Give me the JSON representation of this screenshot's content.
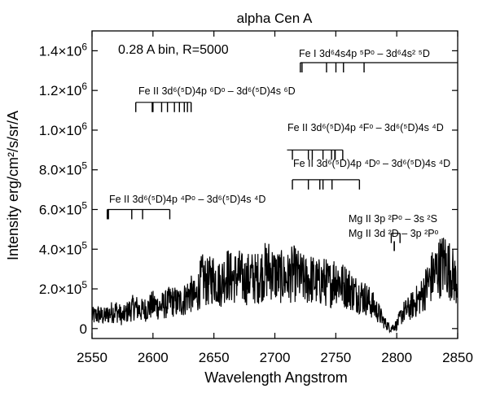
{
  "chart_data": {
    "type": "line",
    "title": "alpha Cen A",
    "xlabel": "Wavelength Angstrom",
    "ylabel": "Intensity erg/cm²/s/sr/A",
    "annotation": "0.28 A bin, R=5000",
    "xlim": [
      2550,
      2850
    ],
    "ylim": [
      -50000,
      1500000
    ],
    "x_ticks": [
      2550,
      2600,
      2650,
      2700,
      2750,
      2800,
      2850
    ],
    "x_ticklabels": [
      "2550",
      "2600",
      "2650",
      "2700",
      "2750",
      "2800",
      "2850"
    ],
    "y_ticks": [
      0,
      200000,
      400000,
      600000,
      800000,
      1000000,
      1200000,
      1400000
    ],
    "y_ticklabels": [
      {
        "text": "0",
        "mant": "",
        "exp": ""
      },
      {
        "text": "",
        "mant": "2.0×10",
        "exp": "5"
      },
      {
        "text": "",
        "mant": "4.0×10",
        "exp": "5"
      },
      {
        "text": "",
        "mant": "6.0×10",
        "exp": "5"
      },
      {
        "text": "",
        "mant": "8.0×10",
        "exp": "5"
      },
      {
        "text": "",
        "mant": "1.0×10",
        "exp": "6"
      },
      {
        "text": "",
        "mant": "1.2×10",
        "exp": "6"
      },
      {
        "text": "",
        "mant": "1.4×10",
        "exp": "6"
      }
    ],
    "grid": false,
    "color": "#000000",
    "series": [
      {
        "x": [
          2550,
          2555,
          2560,
          2565,
          2570,
          2575,
          2580,
          2585,
          2590,
          2595,
          2600,
          2605,
          2610,
          2615,
          2620,
          2625,
          2630,
          2635,
          2640,
          2645,
          2650,
          2655,
          2660,
          2665,
          2670,
          2675,
          2680,
          2685,
          2690,
          2695,
          2700,
          2705,
          2710,
          2715,
          2720,
          2725,
          2730,
          2735,
          2740,
          2745,
          2750,
          2755,
          2760,
          2765,
          2770,
          2775,
          2780,
          2785,
          2790,
          2795,
          2800,
          2805,
          2810,
          2815,
          2820,
          2825,
          2830,
          2835,
          2840,
          2845,
          2850
        ],
        "y": [
          60000,
          70000,
          60000,
          80000,
          90000,
          60000,
          90000,
          110000,
          90000,
          100000,
          120000,
          110000,
          120000,
          140000,
          130000,
          140000,
          180000,
          150000,
          250000,
          230000,
          260000,
          220000,
          280000,
          250000,
          270000,
          240000,
          260000,
          250000,
          280000,
          300000,
          270000,
          260000,
          250000,
          280000,
          260000,
          240000,
          250000,
          230000,
          240000,
          220000,
          260000,
          220000,
          210000,
          180000,
          170000,
          150000,
          120000,
          80000,
          30000,
          0,
          20000,
          80000,
          100000,
          130000,
          160000,
          220000,
          270000,
          310000,
          330000,
          280000,
          220000
        ]
      }
    ],
    "line_groups": [
      {
        "label": "Fe I 3d⁶4s4p ⁵Pᵒ – 3d⁶4s² ⁵D",
        "y": 1340000,
        "lines": [
          2720.9,
          2722.3,
          2742.4,
          2750.1,
          2756.3,
          2773.2
        ],
        "span": [
          2720.9,
          2850
        ]
      },
      {
        "label": "Fe II 3d⁶(⁵D)4p ⁶Dᵒ – 3d⁶(⁵D)4s ⁶D",
        "y": 1140000,
        "lines": [
          2585.9,
          2599.4,
          2600.0,
          2607.1,
          2611.9,
          2617.6,
          2621.7,
          2625.7,
          2628.3,
          2631.3
        ],
        "span": [
          2585.9,
          2631.3
        ]
      },
      {
        "label": "Fe II 3d⁶(⁵D)4p ⁴Fᵒ – 3d⁶(⁵D)4s ⁴D",
        "y": 900000,
        "lines": [
          2714.4,
          2727.5,
          2730.7,
          2739.5,
          2746.5,
          2749.2,
          2749.5,
          2755.7
        ],
        "span": [
          2710,
          2755.7
        ]
      },
      {
        "label": "Fe II 3d⁶(⁵D)4p ⁴Dᵒ – 3d⁶(⁵D)4s ⁴D",
        "y": 750000,
        "lines": [
          2714.4,
          2727.5,
          2736.9,
          2739.5,
          2746.9,
          2769.4
        ],
        "span": [
          2714.4,
          2769.4
        ]
      },
      {
        "label": "Fe II 3d⁶(⁵D)4p ⁴Pᵒ – 3d⁶(⁵D)4s ⁴D",
        "y": 600000,
        "lines": [
          2562.5,
          2563.5,
          2582.6,
          2591.5,
          2613.8
        ],
        "span": [
          2562.5,
          2613.8
        ]
      },
      {
        "label": "Mg II 3p ²Pᵒ – 3s ²S",
        "y": 480000,
        "lines": [
          2795.5,
          2802.7
        ],
        "span": [
          2795.5,
          2802.7
        ]
      },
      {
        "label": "Mg II 3d ²D – 3p ²Pᵒ",
        "y": 440000,
        "lines": [
          2797.9,
          2798.0
        ],
        "span": [
          2797.9,
          2798.0
        ]
      }
    ]
  }
}
